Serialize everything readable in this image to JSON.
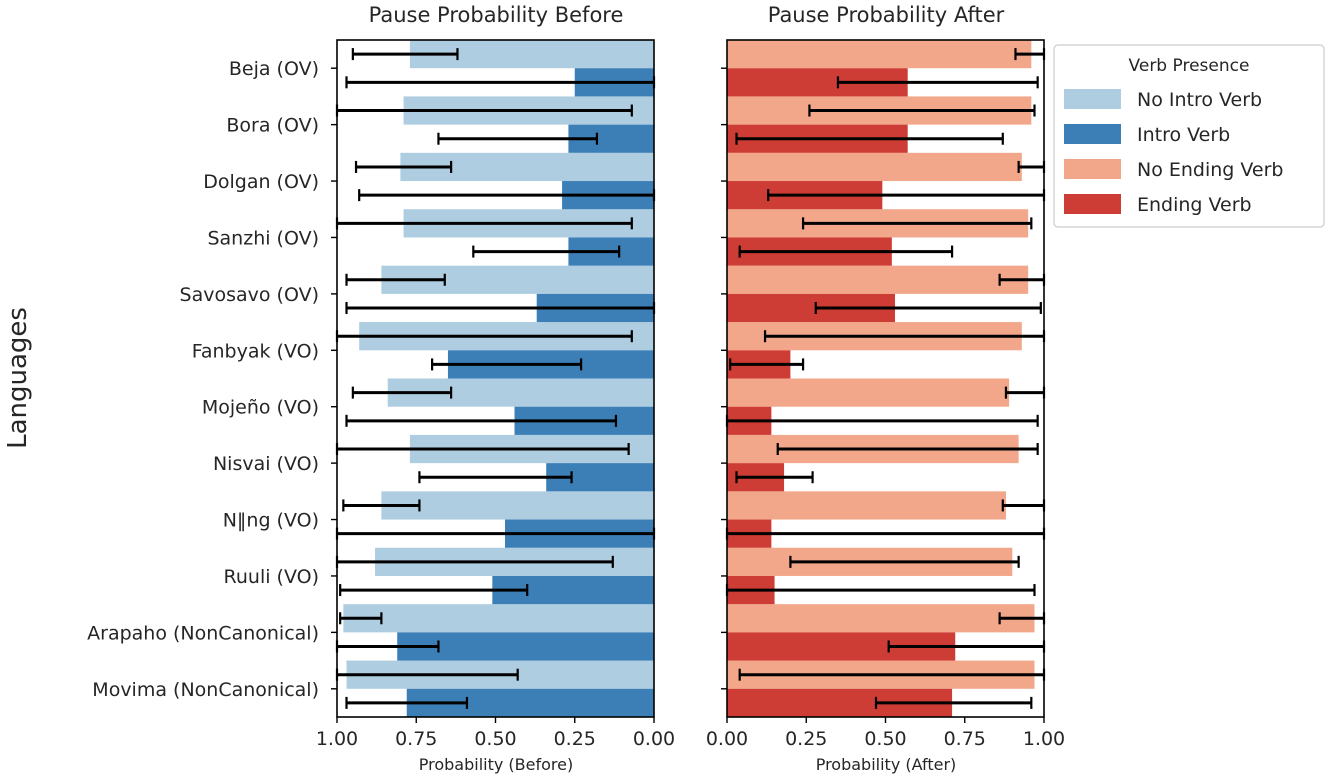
{
  "chart_data": {
    "type": "bar",
    "orientation": "horizontal",
    "ylabel": "Languages",
    "categories": [
      "Beja (OV)",
      "Bora (OV)",
      "Dolgan (OV)",
      "Sanzhi (OV)",
      "Savosavo (OV)",
      "Fanbyak (VO)",
      "Mojeño (VO)",
      "Nisvai (VO)",
      "N‖ng (VO)",
      "Ruuli (VO)",
      "Arapaho (NonCanonical)",
      "Movima (NonCanonical)"
    ],
    "legend": {
      "title": "Verb Presence",
      "position": "top-right",
      "entries": [
        {
          "label": "No Intro Verb",
          "color": "#aecde1"
        },
        {
          "label": "Intro Verb",
          "color": "#3c7fb6"
        },
        {
          "label": "No Ending Verb",
          "color": "#f2a78b"
        },
        {
          "label": "Ending Verb",
          "color": "#ce3d35"
        }
      ]
    },
    "panels": [
      {
        "title": "Pause Probability Before",
        "xlabel": "Probability (Before)",
        "xlim": [
          1.0,
          0.0
        ],
        "xticks": [
          "1.00",
          "0.75",
          "0.50",
          "0.25",
          "0.00"
        ],
        "tick_values": [
          1.0,
          0.75,
          0.5,
          0.25,
          0.0
        ],
        "series": [
          {
            "name": "No Intro Verb",
            "color": "#aecde1",
            "values": [
              0.77,
              0.79,
              0.8,
              0.79,
              0.86,
              0.93,
              0.84,
              0.77,
              0.86,
              0.88,
              0.98,
              0.97
            ],
            "err_low": [
              0.62,
              0.07,
              0.64,
              0.07,
              0.66,
              0.07,
              0.64,
              0.08,
              0.74,
              0.13,
              0.86,
              0.43
            ],
            "err_high": [
              0.95,
              1.0,
              0.94,
              1.0,
              0.97,
              1.0,
              0.95,
              1.0,
              0.98,
              1.0,
              0.99,
              1.0
            ]
          },
          {
            "name": "Intro Verb",
            "color": "#3c7fb6",
            "values": [
              0.25,
              0.27,
              0.29,
              0.27,
              0.37,
              0.65,
              0.44,
              0.34,
              0.47,
              0.51,
              0.81,
              0.78
            ],
            "err_low": [
              0.0,
              0.18,
              0.0,
              0.11,
              0.0,
              0.23,
              0.12,
              0.26,
              0.0,
              0.4,
              0.68,
              0.59
            ],
            "err_high": [
              0.97,
              0.68,
              0.93,
              0.57,
              0.97,
              0.7,
              0.97,
              0.74,
              1.0,
              0.99,
              1.0,
              0.97
            ]
          }
        ]
      },
      {
        "title": "Pause Probability After",
        "xlabel": "Probability (After)",
        "xlim": [
          0.0,
          1.0
        ],
        "xticks": [
          "0.00",
          "0.25",
          "0.50",
          "0.75",
          "1.00"
        ],
        "tick_values": [
          0.0,
          0.25,
          0.5,
          0.75,
          1.0
        ],
        "series": [
          {
            "name": "No Ending Verb",
            "color": "#f2a78b",
            "values": [
              0.96,
              0.96,
              0.93,
              0.95,
              0.95,
              0.93,
              0.89,
              0.92,
              0.88,
              0.9,
              0.97,
              0.97
            ],
            "err_low": [
              0.91,
              0.26,
              0.92,
              0.24,
              0.86,
              0.12,
              0.88,
              0.16,
              0.87,
              0.2,
              0.86,
              0.04
            ],
            "err_high": [
              1.0,
              0.97,
              1.0,
              0.96,
              1.0,
              1.0,
              1.0,
              0.98,
              1.0,
              0.92,
              1.0,
              1.0
            ]
          },
          {
            "name": "Ending Verb",
            "color": "#ce3d35",
            "values": [
              0.57,
              0.57,
              0.49,
              0.52,
              0.53,
              0.2,
              0.14,
              0.18,
              0.14,
              0.15,
              0.72,
              0.71
            ],
            "err_low": [
              0.35,
              0.03,
              0.13,
              0.04,
              0.28,
              0.01,
              0.0,
              0.03,
              0.0,
              0.0,
              0.51,
              0.47
            ],
            "err_high": [
              0.98,
              0.87,
              1.0,
              0.71,
              0.99,
              0.24,
              0.98,
              0.27,
              1.0,
              0.97,
              1.0,
              0.96
            ]
          }
        ]
      }
    ]
  }
}
